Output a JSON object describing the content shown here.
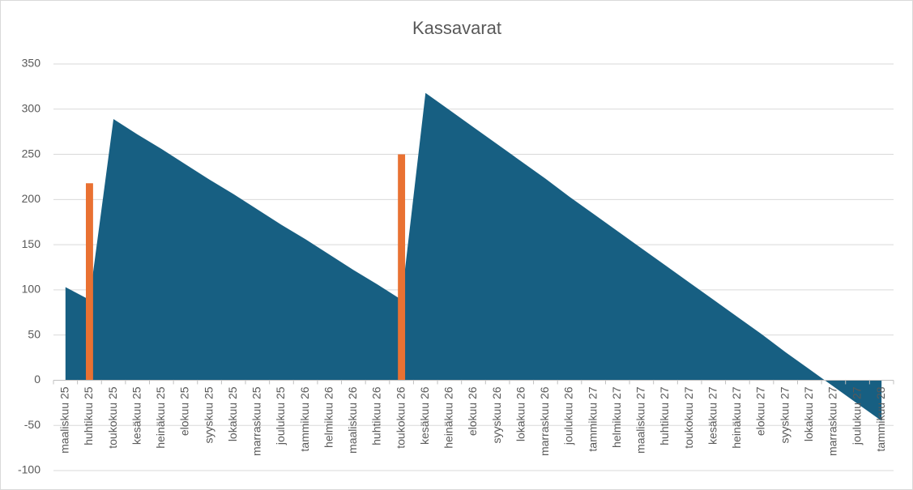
{
  "chart_data": {
    "type": "combo",
    "title": "Kassavarat",
    "categories": [
      "maaliskuu 25",
      "huhtikuu 25",
      "toukokuu 25",
      "kesäkuu 25",
      "heinäkuu 25",
      "elokuu 25",
      "syyskuu 25",
      "lokakuu 25",
      "marraskuu 25",
      "joulukuu 25",
      "tammikuu 26",
      "helmikuu 26",
      "maaliskuu 26",
      "huhtikuu 26",
      "toukokuu 26",
      "kesäkuu 26",
      "heinäkuu 26",
      "elokuu 26",
      "syyskuu 26",
      "lokakuu 26",
      "marraskuu 26",
      "joulukuu 26",
      "tammikuu 27",
      "helmikuu 27",
      "maaliskuu 27",
      "huhtikuu 27",
      "toukokuu 27",
      "kesäkuu 27",
      "heinäkuu 27",
      "elokuu 27",
      "syyskuu 27",
      "lokakuu 27",
      "marraskuu 27",
      "joulukuu 27",
      "tammikuu 28"
    ],
    "series": [
      {
        "type": "area",
        "color": "#175f82",
        "values": [
          103,
          89,
          289,
          272,
          256,
          239,
          222,
          206,
          189,
          172,
          156,
          139,
          122,
          106,
          89,
          318,
          299,
          280,
          261,
          242,
          223,
          203,
          184,
          165,
          146,
          127,
          108,
          89,
          70,
          51,
          31,
          12,
          -7,
          -26,
          -45
        ]
      },
      {
        "type": "bar",
        "color": "#e97132",
        "values": [
          null,
          218,
          null,
          null,
          null,
          null,
          null,
          null,
          null,
          null,
          null,
          null,
          null,
          null,
          250,
          null,
          null,
          null,
          null,
          null,
          null,
          null,
          null,
          null,
          null,
          null,
          null,
          null,
          null,
          null,
          null,
          null,
          null,
          null,
          null
        ]
      }
    ],
    "ylim": [
      -100,
      350
    ],
    "yticks": [
      -100,
      -50,
      0,
      50,
      100,
      150,
      200,
      250,
      300,
      350
    ],
    "grid": true
  }
}
